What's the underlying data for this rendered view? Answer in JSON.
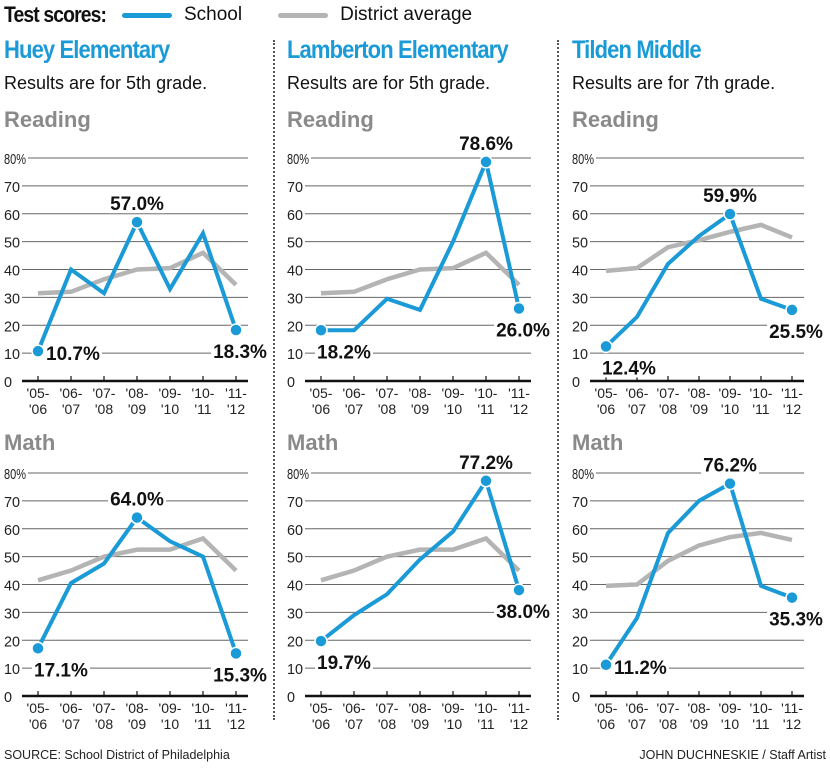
{
  "legend": {
    "title": "Test scores:",
    "items": [
      {
        "label": "School",
        "color": "#1a9ad6"
      },
      {
        "label": "District average",
        "color": "#b4b4b4"
      }
    ]
  },
  "footer": {
    "source": "SOURCE: School District of Philadelphia",
    "credit": "JOHN DUCHNESKIE / Staff Artist"
  },
  "colors": {
    "school": "#1a9ad6",
    "district": "#b4b4b4",
    "title": "#1a9ad6",
    "subject": "#8a8a8a"
  },
  "schools": [
    {
      "name": "Huey Elementary",
      "note": "Results are for 5th grade."
    },
    {
      "name": "Lamberton Elementary",
      "note": "Results are for 5th grade."
    },
    {
      "name": "Tilden Middle",
      "note": "Results are for 7th grade."
    }
  ],
  "chart_data": [
    {
      "type": "line",
      "school": "Huey Elementary",
      "title": "Reading",
      "categories": [
        [
          "'05-",
          "'06"
        ],
        [
          "'06-",
          "'07"
        ],
        [
          "'07-",
          "'08"
        ],
        [
          "'08-",
          "'09"
        ],
        [
          "'09-",
          "'10"
        ],
        [
          "'10-",
          "'11"
        ],
        [
          "'11-",
          "'12"
        ]
      ],
      "yticks": [
        "0",
        "10",
        "20",
        "30",
        "40",
        "50",
        "60",
        "70",
        "80%"
      ],
      "ylim": [
        0,
        80
      ],
      "grid": true,
      "xlabel": "",
      "ylabel": "",
      "series": [
        {
          "name": "School",
          "values": [
            10.7,
            40,
            31.5,
            57.0,
            33,
            53,
            18.3
          ]
        },
        {
          "name": "District average",
          "values": [
            31.5,
            32,
            36.5,
            40,
            40.5,
            46,
            34.5
          ]
        }
      ],
      "annotations": [
        {
          "index": 0,
          "text": "10.7%",
          "pos": "right"
        },
        {
          "index": 3,
          "text": "57.0%",
          "pos": "above"
        },
        {
          "index": 6,
          "text": "18.3%",
          "pos": "below"
        }
      ]
    },
    {
      "type": "line",
      "school": "Huey Elementary",
      "title": "Math",
      "categories": [
        [
          "'05-",
          "'06"
        ],
        [
          "'06-",
          "'07"
        ],
        [
          "'07-",
          "'08"
        ],
        [
          "'08-",
          "'09"
        ],
        [
          "'09-",
          "'10"
        ],
        [
          "'10-",
          "'11"
        ],
        [
          "'11-",
          "'12"
        ]
      ],
      "yticks": [
        "0",
        "10",
        "20",
        "30",
        "40",
        "50",
        "60",
        "70",
        "80%"
      ],
      "ylim": [
        0,
        80
      ],
      "grid": true,
      "xlabel": "",
      "ylabel": "",
      "series": [
        {
          "name": "School",
          "values": [
            17.1,
            40.5,
            47.5,
            64.0,
            55.5,
            50,
            15.3
          ]
        },
        {
          "name": "District average",
          "values": [
            41.5,
            45,
            50,
            52.5,
            52.5,
            56.5,
            45
          ]
        }
      ],
      "annotations": [
        {
          "index": 0,
          "text": "17.1%",
          "pos": "below"
        },
        {
          "index": 3,
          "text": "64.0%",
          "pos": "above"
        },
        {
          "index": 6,
          "text": "15.3%",
          "pos": "below"
        }
      ]
    },
    {
      "type": "line",
      "school": "Lamberton Elementary",
      "title": "Reading",
      "categories": [
        [
          "'05-",
          "'06"
        ],
        [
          "'06-",
          "'07"
        ],
        [
          "'07-",
          "'08"
        ],
        [
          "'08-",
          "'09"
        ],
        [
          "'09-",
          "'10"
        ],
        [
          "'10-",
          "'11"
        ],
        [
          "'11-",
          "'12"
        ]
      ],
      "yticks": [
        "0",
        "10",
        "20",
        "30",
        "40",
        "50",
        "60",
        "70",
        "80%"
      ],
      "ylim": [
        0,
        80
      ],
      "grid": true,
      "xlabel": "",
      "ylabel": "",
      "series": [
        {
          "name": "School",
          "values": [
            18.2,
            18.2,
            29.5,
            25.5,
            50,
            78.6,
            26.0
          ]
        },
        {
          "name": "District average",
          "values": [
            31.5,
            32,
            36.5,
            40,
            40.5,
            46,
            34.5
          ]
        }
      ],
      "annotations": [
        {
          "index": 0,
          "text": "18.2%",
          "pos": "below"
        },
        {
          "index": 5,
          "text": "78.6%",
          "pos": "above"
        },
        {
          "index": 6,
          "text": "26.0%",
          "pos": "below"
        }
      ]
    },
    {
      "type": "line",
      "school": "Lamberton Elementary",
      "title": "Math",
      "categories": [
        [
          "'05-",
          "'06"
        ],
        [
          "'06-",
          "'07"
        ],
        [
          "'07-",
          "'08"
        ],
        [
          "'08-",
          "'09"
        ],
        [
          "'09-",
          "'10"
        ],
        [
          "'10-",
          "'11"
        ],
        [
          "'11-",
          "'12"
        ]
      ],
      "yticks": [
        "0",
        "10",
        "20",
        "30",
        "40",
        "50",
        "60",
        "70",
        "80%"
      ],
      "ylim": [
        0,
        80
      ],
      "grid": true,
      "xlabel": "",
      "ylabel": "",
      "series": [
        {
          "name": "School",
          "values": [
            19.7,
            29,
            36.5,
            49,
            59,
            77.2,
            38.0
          ]
        },
        {
          "name": "District average",
          "values": [
            41.5,
            45,
            50,
            52.5,
            52.5,
            56.5,
            45
          ]
        }
      ],
      "annotations": [
        {
          "index": 0,
          "text": "19.7%",
          "pos": "below"
        },
        {
          "index": 5,
          "text": "77.2%",
          "pos": "above"
        },
        {
          "index": 6,
          "text": "38.0%",
          "pos": "below"
        }
      ]
    },
    {
      "type": "line",
      "school": "Tilden Middle",
      "title": "Reading",
      "categories": [
        [
          "'05-",
          "'06"
        ],
        [
          "'06-",
          "'07"
        ],
        [
          "'07-",
          "'08"
        ],
        [
          "'08-",
          "'09"
        ],
        [
          "'09-",
          "'10"
        ],
        [
          "'10-",
          "'11"
        ],
        [
          "'11-",
          "'12"
        ]
      ],
      "yticks": [
        "0",
        "10",
        "20",
        "30",
        "40",
        "50",
        "60",
        "70",
        "80%"
      ],
      "ylim": [
        0,
        80
      ],
      "grid": true,
      "xlabel": "",
      "ylabel": "",
      "series": [
        {
          "name": "School",
          "values": [
            12.4,
            23,
            42,
            52,
            59.9,
            29.5,
            25.5
          ]
        },
        {
          "name": "District average",
          "values": [
            39.5,
            40.5,
            48,
            50.5,
            53.5,
            56,
            51.5
          ]
        }
      ],
      "annotations": [
        {
          "index": 0,
          "text": "12.4%",
          "pos": "below"
        },
        {
          "index": 4,
          "text": "59.9%",
          "pos": "above"
        },
        {
          "index": 6,
          "text": "25.5%",
          "pos": "below"
        }
      ]
    },
    {
      "type": "line",
      "school": "Tilden Middle",
      "title": "Math",
      "categories": [
        [
          "'05-",
          "'06"
        ],
        [
          "'06-",
          "'07"
        ],
        [
          "'07-",
          "'08"
        ],
        [
          "'08-",
          "'09"
        ],
        [
          "'09-",
          "'10"
        ],
        [
          "'10-",
          "'11"
        ],
        [
          "'11-",
          "'12"
        ]
      ],
      "yticks": [
        "0",
        "10",
        "20",
        "30",
        "40",
        "50",
        "60",
        "70",
        "80%"
      ],
      "ylim": [
        0,
        80
      ],
      "grid": true,
      "xlabel": "",
      "ylabel": "",
      "series": [
        {
          "name": "School",
          "values": [
            11.2,
            28,
            58.5,
            70,
            76.2,
            39.5,
            35.3
          ]
        },
        {
          "name": "District average",
          "values": [
            39.5,
            40,
            48.5,
            54,
            57,
            58.5,
            56
          ]
        }
      ],
      "annotations": [
        {
          "index": 0,
          "text": "11.2%",
          "pos": "right"
        },
        {
          "index": 4,
          "text": "76.2%",
          "pos": "above"
        },
        {
          "index": 6,
          "text": "35.3%",
          "pos": "below"
        }
      ]
    }
  ]
}
